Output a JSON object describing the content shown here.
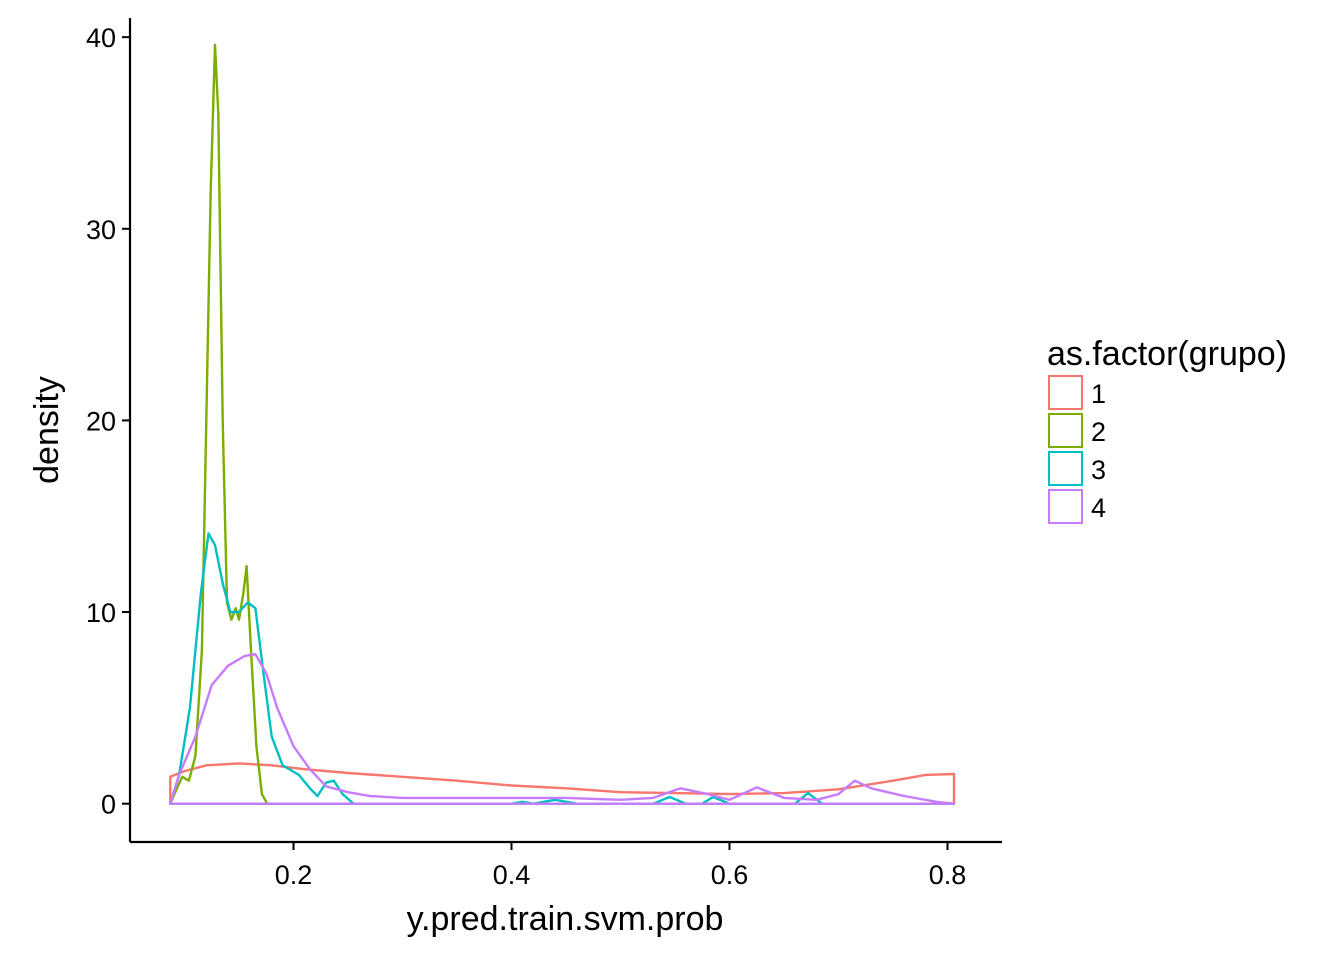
{
  "chart_data": {
    "type": "density",
    "xlabel": "y.pred.train.svm.prob",
    "ylabel": "density",
    "xlim": [
      0.05,
      0.85
    ],
    "ylim": [
      -2,
      41
    ],
    "x_ticks": [
      0.2,
      0.4,
      0.6,
      0.8
    ],
    "x_tick_labels": [
      "0.2",
      "0.4",
      "0.6",
      "0.8"
    ],
    "y_ticks": [
      0,
      10,
      20,
      30,
      40
    ],
    "y_tick_labels": [
      "0",
      "10",
      "20",
      "30",
      "40"
    ],
    "grid": false,
    "legend": {
      "title": "as.factor(grupo)",
      "position": "right",
      "entries": [
        "1",
        "2",
        "3",
        "4"
      ]
    },
    "series": [
      {
        "label": "1",
        "color": "#F8766D",
        "points": [
          [
            0.087,
            0
          ],
          [
            0.087,
            1.4
          ],
          [
            0.1,
            1.7
          ],
          [
            0.12,
            2.0
          ],
          [
            0.15,
            2.1
          ],
          [
            0.18,
            2.0
          ],
          [
            0.21,
            1.8
          ],
          [
            0.25,
            1.6
          ],
          [
            0.3,
            1.4
          ],
          [
            0.35,
            1.2
          ],
          [
            0.4,
            0.95
          ],
          [
            0.45,
            0.8
          ],
          [
            0.5,
            0.6
          ],
          [
            0.55,
            0.55
          ],
          [
            0.6,
            0.5
          ],
          [
            0.65,
            0.55
          ],
          [
            0.7,
            0.75
          ],
          [
            0.75,
            1.2
          ],
          [
            0.78,
            1.5
          ],
          [
            0.806,
            1.55
          ],
          [
            0.806,
            0
          ]
        ]
      },
      {
        "label": "2",
        "color": "#7CAE00",
        "points": [
          [
            0.087,
            0
          ],
          [
            0.093,
            0.8
          ],
          [
            0.098,
            1.4
          ],
          [
            0.104,
            1.2
          ],
          [
            0.11,
            2.5
          ],
          [
            0.116,
            8
          ],
          [
            0.12,
            20
          ],
          [
            0.124,
            32
          ],
          [
            0.128,
            39.6
          ],
          [
            0.131,
            36
          ],
          [
            0.135,
            20
          ],
          [
            0.139,
            10.5
          ],
          [
            0.143,
            9.6
          ],
          [
            0.147,
            10.2
          ],
          [
            0.15,
            9.6
          ],
          [
            0.154,
            11
          ],
          [
            0.157,
            12.4
          ],
          [
            0.161,
            8
          ],
          [
            0.166,
            3
          ],
          [
            0.171,
            0.5
          ],
          [
            0.176,
            0
          ]
        ]
      },
      {
        "label": "3",
        "color": "#00BFC4",
        "points": [
          [
            0.087,
            0
          ],
          [
            0.095,
            1.5
          ],
          [
            0.105,
            5
          ],
          [
            0.115,
            11
          ],
          [
            0.122,
            14.1
          ],
          [
            0.128,
            13.5
          ],
          [
            0.135,
            11.5
          ],
          [
            0.142,
            10
          ],
          [
            0.15,
            10
          ],
          [
            0.158,
            10.5
          ],
          [
            0.165,
            10.2
          ],
          [
            0.172,
            7
          ],
          [
            0.18,
            3.5
          ],
          [
            0.19,
            2
          ],
          [
            0.205,
            1.5
          ],
          [
            0.215,
            0.8
          ],
          [
            0.222,
            0.4
          ],
          [
            0.23,
            1.1
          ],
          [
            0.237,
            1.2
          ],
          [
            0.245,
            0.5
          ],
          [
            0.255,
            0
          ],
          [
            0.4,
            0
          ],
          [
            0.41,
            0.1
          ],
          [
            0.42,
            0
          ],
          [
            0.44,
            0.2
          ],
          [
            0.46,
            0
          ],
          [
            0.53,
            0
          ],
          [
            0.545,
            0.35
          ],
          [
            0.56,
            0
          ],
          [
            0.575,
            0
          ],
          [
            0.585,
            0.35
          ],
          [
            0.6,
            0
          ],
          [
            0.66,
            0
          ],
          [
            0.672,
            0.55
          ],
          [
            0.685,
            0
          ],
          [
            0.806,
            0
          ]
        ]
      },
      {
        "label": "4",
        "color": "#C77CFF",
        "points": [
          [
            0.087,
            0
          ],
          [
            0.095,
            1.5
          ],
          [
            0.11,
            3.5
          ],
          [
            0.125,
            6.2
          ],
          [
            0.14,
            7.2
          ],
          [
            0.155,
            7.7
          ],
          [
            0.165,
            7.8
          ],
          [
            0.175,
            6.8
          ],
          [
            0.185,
            5
          ],
          [
            0.2,
            3
          ],
          [
            0.215,
            1.8
          ],
          [
            0.23,
            0.9
          ],
          [
            0.25,
            0.6
          ],
          [
            0.27,
            0.4
          ],
          [
            0.3,
            0.3
          ],
          [
            0.35,
            0.3
          ],
          [
            0.4,
            0.3
          ],
          [
            0.45,
            0.3
          ],
          [
            0.5,
            0.2
          ],
          [
            0.53,
            0.3
          ],
          [
            0.555,
            0.8
          ],
          [
            0.58,
            0.5
          ],
          [
            0.6,
            0.2
          ],
          [
            0.625,
            0.85
          ],
          [
            0.65,
            0.3
          ],
          [
            0.68,
            0.2
          ],
          [
            0.7,
            0.5
          ],
          [
            0.715,
            1.2
          ],
          [
            0.73,
            0.8
          ],
          [
            0.76,
            0.4
          ],
          [
            0.79,
            0.1
          ],
          [
            0.806,
            0
          ]
        ]
      }
    ]
  }
}
